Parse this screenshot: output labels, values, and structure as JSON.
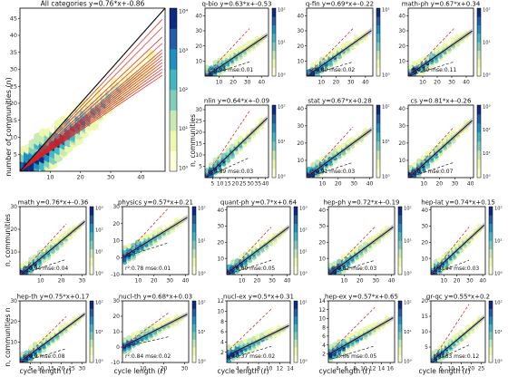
{
  "figure": {
    "ylabel_communities": "number of communities (n)",
    "ylabel_small": "n, communities",
    "ylabel_small_n": "n, communities n",
    "xlabel_cycle": "cycle length (ℓ)"
  },
  "colors": {
    "fit_line": "#111111",
    "ci_band": "#9a9a9a",
    "red_dash": "#e0282b",
    "lower_dash": "#222222",
    "red_lines": "#e01e1e",
    "colormap": [
      "#ffffd9",
      "#edf8b1",
      "#c7e9b4",
      "#7fcdbb",
      "#41b6c4",
      "#1d91c0",
      "#225ea8",
      "#0c2c84"
    ]
  },
  "chart_data": [
    {
      "type": "heatmap",
      "panel": "main",
      "title": "All categories  y=0.76*x+-0.86",
      "ylabel": "number of communities (n)",
      "xlabel": "",
      "xlim": [
        0,
        48
      ],
      "ylim": [
        0,
        48
      ],
      "xticks": [
        "10",
        "20",
        "30",
        "40"
      ],
      "yticks": [
        "5",
        "10",
        "15",
        "20",
        "25",
        "30",
        "35",
        "40",
        "45"
      ],
      "colorbar": [
        "10^0",
        "10^1",
        "10^2",
        "10^3",
        "10^4"
      ],
      "fit": {
        "slope": 0.76,
        "intercept": -0.86
      },
      "red_slopes": [
        0.6,
        0.62,
        0.64,
        0.66,
        0.68,
        0.7,
        0.72,
        0.74,
        0.76,
        0.8,
        0.84,
        0.9,
        0.95
      ]
    },
    {
      "type": "heatmap",
      "panel": "q-bio",
      "title": "q-bio  y=0.63*x+-0.53",
      "xlim": [
        0,
        45
      ],
      "ylim": [
        0,
        45
      ],
      "xticks": [
        "10",
        "20",
        "30",
        "40"
      ],
      "yticks": [
        "10",
        "20",
        "30",
        "40"
      ],
      "colorbar": [
        "10^0",
        "10^1",
        "10^2"
      ],
      "fit": {
        "slope": 0.63,
        "intercept": -0.53
      },
      "annotation": "r²:0.94  mse:0.01"
    },
    {
      "type": "heatmap",
      "panel": "q-fin",
      "title": "q-fin  y=0.69*x+-0.22",
      "xlim": [
        0,
        45
      ],
      "ylim": [
        0,
        45
      ],
      "xticks": [
        "10",
        "20",
        "30",
        "40"
      ],
      "yticks": [
        "10",
        "20",
        "30",
        "40"
      ],
      "colorbar": [
        "10^0",
        "10^1"
      ],
      "fit": {
        "slope": 0.69,
        "intercept": -0.22
      },
      "annotation": "r²:0.89  mse:0.02"
    },
    {
      "type": "heatmap",
      "panel": "math-ph",
      "title": "math-ph  y=0.67*x+0.34",
      "xlim": [
        0,
        45
      ],
      "ylim": [
        0,
        45
      ],
      "xticks": [
        "10",
        "20",
        "30",
        "40"
      ],
      "yticks": [
        "10",
        "20",
        "30",
        "40"
      ],
      "colorbar": [
        "10^0",
        "10^1",
        "10^2"
      ],
      "fit": {
        "slope": 0.67,
        "intercept": 0.34
      },
      "annotation": "r²:0.89  mse:0.11"
    },
    {
      "type": "heatmap",
      "panel": "nlin",
      "title": "nlin  y=0.64*x+-0.09",
      "xlim": [
        0,
        42
      ],
      "ylim": [
        0,
        32
      ],
      "xticks": [
        "5",
        "10",
        "15",
        "20",
        "25",
        "30",
        "35",
        "40"
      ],
      "yticks": [
        "5",
        "10",
        "15",
        "20",
        "25",
        "30"
      ],
      "colorbar": [
        "10^0",
        "10^1",
        "10^2"
      ],
      "fit": {
        "slope": 0.64,
        "intercept": -0.09
      },
      "annotation": "r²:0.89  mse:0.03"
    },
    {
      "type": "heatmap",
      "panel": "stat",
      "title": "stat  y=0.67*x+0.28",
      "xlim": [
        0,
        42
      ],
      "ylim": [
        0,
        42
      ],
      "xticks": [
        "10",
        "20",
        "30",
        "40"
      ],
      "yticks": [
        "10",
        "20",
        "30",
        "40"
      ],
      "colorbar": [
        "10^0",
        "10^1",
        "10^2"
      ],
      "fit": {
        "slope": 0.67,
        "intercept": 0.28
      },
      "annotation": "r²:0.91  mse:0.03"
    },
    {
      "type": "heatmap",
      "panel": "cs",
      "title": "cs  y=0.81*x+-0.26",
      "xlim": [
        0,
        42
      ],
      "ylim": [
        0,
        42
      ],
      "xticks": [
        "10",
        "20",
        "30",
        "40"
      ],
      "yticks": [
        "10",
        "20",
        "30",
        "40"
      ],
      "colorbar": [
        "10^0",
        "10^1",
        "10^2",
        "10^3"
      ],
      "fit": {
        "slope": 0.81,
        "intercept": -0.26
      },
      "annotation": "r²:0.9  mse:0.07"
    },
    {
      "type": "heatmap",
      "panel": "math",
      "title": "math  y=0.76*x+-0.36",
      "xlim": [
        0,
        32
      ],
      "ylim": [
        0,
        30
      ],
      "xticks": [
        "10",
        "20",
        "30"
      ],
      "yticks": [
        "10",
        "20",
        "30"
      ],
      "colorbar": [
        "10^0",
        "10^1",
        "10^2",
        "10^3"
      ],
      "fit": {
        "slope": 0.76,
        "intercept": -0.36
      },
      "annotation": "r²:0.94  mse:0.04"
    },
    {
      "type": "heatmap",
      "panel": "physics",
      "title": "physics  y=0.57*x+0.21",
      "xlim": [
        0,
        42
      ],
      "ylim": [
        -10,
        30
      ],
      "xticks": [
        "10",
        "20",
        "30",
        "40"
      ],
      "yticks": [
        "-10",
        "0",
        "10",
        "20",
        "30"
      ],
      "colorbar": [
        "10^0",
        "10^1",
        "10^2"
      ],
      "fit": {
        "slope": 0.57,
        "intercept": 0.21
      },
      "annotation": "r²:0.78  mse:0.01"
    },
    {
      "type": "heatmap",
      "panel": "quant-ph",
      "title": "quant-ph  y=0.7*x+0.64",
      "xlim": [
        0,
        42
      ],
      "ylim": [
        0,
        42
      ],
      "xticks": [
        "10",
        "20",
        "30",
        "40"
      ],
      "yticks": [
        "10",
        "20",
        "30",
        "40"
      ],
      "colorbar": [
        "10^0",
        "10^1",
        "10^2",
        "10^3"
      ],
      "fit": {
        "slope": 0.7,
        "intercept": 0.64
      },
      "annotation": "r²:0.89  mse:0.05"
    },
    {
      "type": "heatmap",
      "panel": "hep-ph",
      "title": "hep-ph  y=0.72*x+-0.19",
      "xlim": [
        0,
        42
      ],
      "ylim": [
        0,
        42
      ],
      "xticks": [
        "10",
        "20",
        "30",
        "40"
      ],
      "yticks": [
        "10",
        "20",
        "30",
        "40"
      ],
      "colorbar": [
        "10^0",
        "10^1",
        "10^2"
      ],
      "fit": {
        "slope": 0.72,
        "intercept": -0.19
      },
      "annotation": "r²:0.82  mse:0.03"
    },
    {
      "type": "heatmap",
      "panel": "hep-lat",
      "title": "hep-lat  y=0.74*x+0.15",
      "xlim": [
        0,
        42
      ],
      "ylim": [
        0,
        42
      ],
      "xticks": [
        "10",
        "20",
        "30",
        "40"
      ],
      "yticks": [
        "10",
        "20",
        "30",
        "40"
      ],
      "colorbar": [
        "10^0",
        "10^1",
        "10^2"
      ],
      "fit": {
        "slope": 0.74,
        "intercept": 0.15
      },
      "annotation": "r²:0.84  mse:0.03"
    },
    {
      "type": "heatmap",
      "panel": "hep-th",
      "title": "hep-th  y=0.75*x+0.17",
      "xlim": [
        0,
        32
      ],
      "ylim": [
        0,
        30
      ],
      "xticks": [
        "5",
        "10",
        "15",
        "20",
        "25",
        "30"
      ],
      "yticks": [
        "10",
        "20",
        "30"
      ],
      "colorbar": [
        "10^0",
        "10^1",
        "10^2"
      ],
      "fit": {
        "slope": 0.75,
        "intercept": 0.17
      },
      "annotation": "r²:0.9  mse:0.08"
    },
    {
      "type": "heatmap",
      "panel": "nucl-th",
      "title": "nucl-th  y=0.68*x+0.03",
      "xlim": [
        0,
        32
      ],
      "ylim": [
        -10,
        30
      ],
      "xticks": [
        "10",
        "20",
        "30"
      ],
      "yticks": [
        "-10",
        "0",
        "10",
        "20",
        "30"
      ],
      "colorbar": [
        "10^0",
        "10^1",
        "10^2"
      ],
      "fit": {
        "slope": 0.68,
        "intercept": 0.03
      },
      "annotation": "r²:0.84  mse:0.02"
    },
    {
      "type": "heatmap",
      "panel": "nucl-ex",
      "title": "nucl-ex  y=0.5*x+0.31",
      "xlim": [
        2,
        14
      ],
      "ylim": [
        0,
        12
      ],
      "xticks": [
        "4",
        "6",
        "8",
        "10",
        "12",
        "14"
      ],
      "yticks": [
        "2",
        "4",
        "6",
        "8",
        "10",
        "12"
      ],
      "colorbar": [
        "10^0",
        "10^1"
      ],
      "fit": {
        "slope": 0.5,
        "intercept": 0.31
      },
      "annotation": "r²:0.37  mse:0.02"
    },
    {
      "type": "heatmap",
      "panel": "hep-ex",
      "title": "hep-ex  y=0.57*x+0.65",
      "xlim": [
        2,
        17
      ],
      "ylim": [
        0,
        14
      ],
      "xticks": [
        "4",
        "6",
        "8",
        "10",
        "12",
        "14",
        "16"
      ],
      "yticks": [
        "2",
        "4",
        "6",
        "8",
        "10",
        "12",
        "14"
      ],
      "colorbar": [
        "10^0",
        "10^1",
        "10^2"
      ],
      "fit": {
        "slope": 0.57,
        "intercept": 0.65
      },
      "annotation": "r²:0.66  mse:0.05"
    },
    {
      "type": "heatmap",
      "panel": "gr-qc",
      "title": "gr-qc  y=0.55*x+0.2",
      "xlim": [
        0,
        27
      ],
      "ylim": [
        0,
        20
      ],
      "xticks": [
        "5",
        "10",
        "15",
        "20",
        "25"
      ],
      "yticks": [
        "5",
        "10",
        "15",
        "20"
      ],
      "colorbar": [
        "10^0",
        "10^1",
        "10^2"
      ],
      "fit": {
        "slope": 0.55,
        "intercept": 0.2
      },
      "annotation": "r²:0.83  mse:0.12"
    }
  ]
}
